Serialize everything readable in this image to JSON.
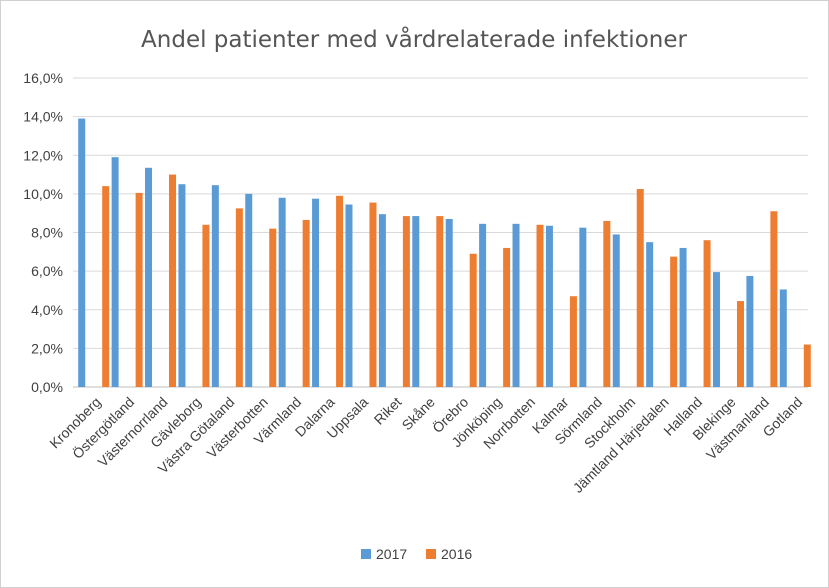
{
  "chart_data": {
    "type": "bar",
    "title": "Andel patienter med vårdrelaterade infektioner",
    "xlabel": "",
    "ylabel": "",
    "ylim": [
      0,
      16
    ],
    "yticks": [
      "0,0%",
      "2,0%",
      "4,0%",
      "6,0%",
      "8,0%",
      "10,0%",
      "12,0%",
      "14,0%",
      "16,0%"
    ],
    "grid": true,
    "legend_position": "bottom",
    "categories": [
      "Kronoberg",
      "Östergötland",
      "Västernorrland",
      "Gävleborg",
      "Västra Götaland",
      "Västerbotten",
      "Värmland",
      "Dalarna",
      "Uppsala",
      "Riket",
      "Skåne",
      "Örebro",
      "Jönköping",
      "Norrbotten",
      "Kalmar",
      "Sörmland",
      "Stockholm",
      "Jämtland Härjedalen",
      "Halland",
      "Blekinge",
      "Västmanland",
      "Gotland"
    ],
    "series": [
      {
        "name": "2017",
        "color": "#5b9bd5",
        "values": [
          13.9,
          11.9,
          11.35,
          10.5,
          10.45,
          10.0,
          9.8,
          9.75,
          9.45,
          8.95,
          8.85,
          8.7,
          8.45,
          8.45,
          8.35,
          8.25,
          7.9,
          7.5,
          7.2,
          5.95,
          5.75,
          5.05
        ]
      },
      {
        "name": "2016",
        "color": "#ed7d31",
        "values": [
          10.4,
          10.05,
          11.0,
          8.4,
          9.25,
          8.2,
          8.65,
          9.9,
          9.55,
          8.85,
          8.85,
          6.9,
          7.2,
          8.4,
          4.7,
          8.6,
          10.25,
          6.75,
          7.6,
          4.45,
          9.1,
          2.2
        ]
      }
    ]
  }
}
